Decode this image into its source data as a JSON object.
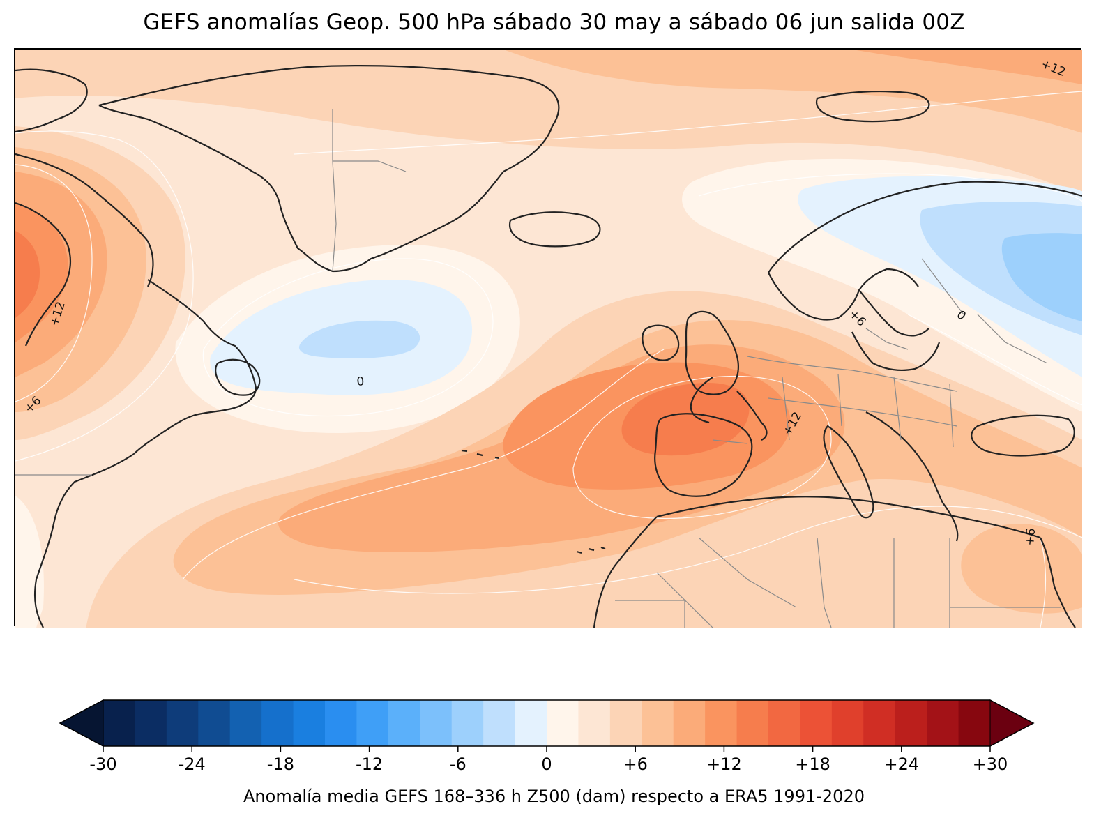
{
  "map": {
    "title": "GEFS anomalías Geop. 500 hPa sábado 30 may a sábado 06 jun salida 00Z",
    "contour_labels": [
      "+12",
      "+12",
      "+6",
      "0",
      "+6",
      "0",
      "+12",
      "+6"
    ],
    "colors": {
      "coast": "#222222",
      "border": "#8a8a8a",
      "contour": "#ffffff"
    }
  },
  "colorbar": {
    "label": "Anomalía media GEFS 168–336 h Z500 (dam) respecto a ERA5 1991-2020",
    "min": -30,
    "max": 30,
    "step": 2,
    "ticks": [
      "-30",
      "-24",
      "-18",
      "-12",
      "-6",
      "0",
      "+6",
      "+12",
      "+18",
      "+24",
      "+30"
    ],
    "colors": [
      "#08214d",
      "#0b2d63",
      "#0e3c7a",
      "#104c92",
      "#1361b1",
      "#1570cc",
      "#1a7fe0",
      "#2a8ef0",
      "#3f9ff7",
      "#5bb0fa",
      "#7cc0fb",
      "#9dd0fc",
      "#bfdffd",
      "#e4f2fe",
      "#fff5eb",
      "#fde6d4",
      "#fcd4b6",
      "#fcc196",
      "#fbab79",
      "#fa945f",
      "#f67d4d",
      "#f26841",
      "#ec5236",
      "#e0402c",
      "#d02e24",
      "#bb1f1c",
      "#a31217",
      "#87070f"
    ],
    "extend_under": "#061532",
    "extend_over": "#6b0010"
  }
}
